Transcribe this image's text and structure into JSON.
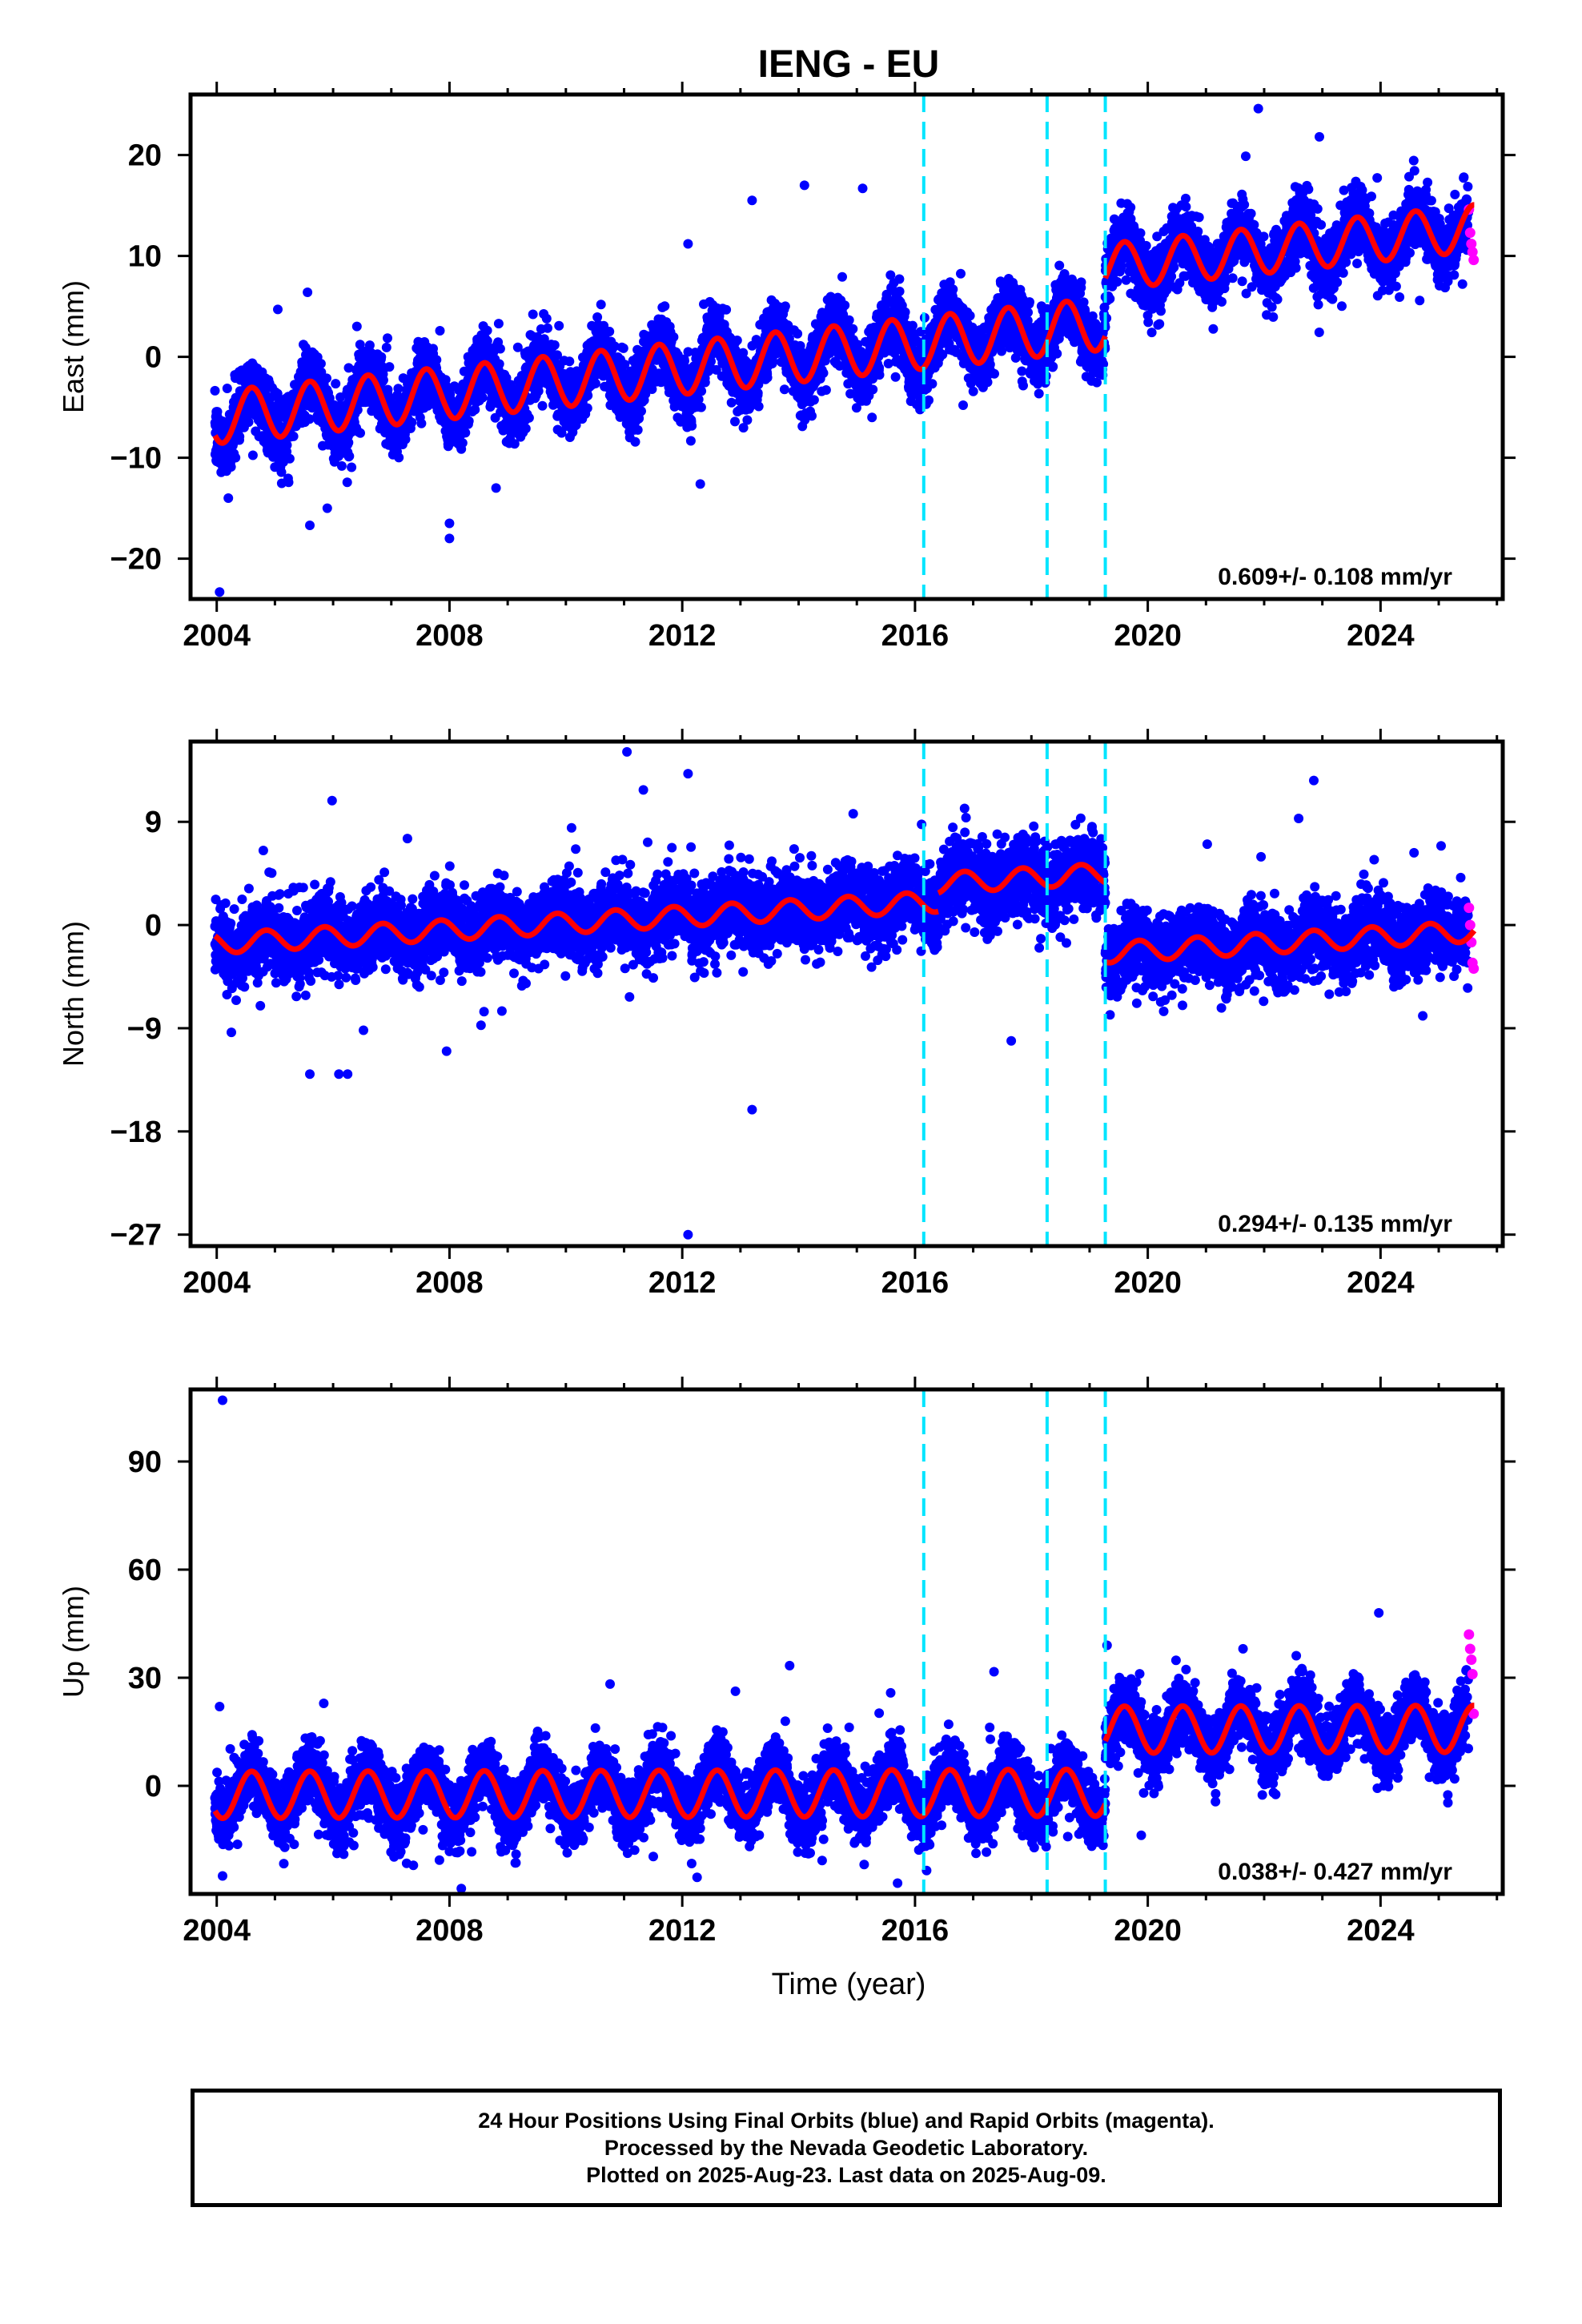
{
  "title": "IENG - EU",
  "x_axis_label": "Time (year)",
  "x_ticks": [
    2004,
    2008,
    2012,
    2016,
    2020,
    2024
  ],
  "event_lines": [
    2016.15,
    2018.27,
    2019.27
  ],
  "colors": {
    "final_orbits": "#0000ff",
    "rapid_orbits": "#ff00ff",
    "model": "#ff0000",
    "events": "#00e5ff",
    "frame": "#000000"
  },
  "chart_data": [
    {
      "type": "scatter",
      "component": "east",
      "ylabel": "East (mm)",
      "ylim": [
        -24,
        26
      ],
      "yticks": [
        20,
        10,
        0,
        -10,
        -20
      ],
      "ytick_labels": [
        "20",
        "10",
        "0",
        "−10",
        "−20"
      ],
      "xlim": [
        2003.55,
        2026.1
      ],
      "rate_text": "0.609+/- 0.108 mm/yr",
      "model": {
        "segments": [
          {
            "start": 2003.97,
            "end": 2019.27,
            "offset": -6.0,
            "trend": 0.609,
            "amp": 2.6,
            "phase": 0.35
          },
          {
            "start": 2019.27,
            "end": 2025.61,
            "offset": -0.4,
            "trend": 0.609,
            "amp": 2.3,
            "phase": 0.35
          }
        ]
      },
      "noise": 1.6,
      "outliers": [
        [
          2004.05,
          -23.3
        ],
        [
          2004.2,
          -14
        ],
        [
          2005.05,
          4.7
        ],
        [
          2012.1,
          11.2
        ],
        [
          2013.2,
          15.5
        ],
        [
          2014.1,
          17
        ],
        [
          2015.1,
          16.7
        ],
        [
          2021.9,
          24.6
        ],
        [
          2022.95,
          21.8
        ],
        [
          2008.0,
          -18.0
        ],
        [
          2008.0,
          -16.5
        ],
        [
          2005.6,
          -16.7
        ],
        [
          2005.9,
          -15.0
        ],
        [
          2008.8,
          -13.0
        ]
      ],
      "rapid_points": [
        [
          2025.52,
          14.6
        ],
        [
          2025.54,
          12.3
        ],
        [
          2025.56,
          11.2
        ],
        [
          2025.58,
          10.4
        ],
        [
          2025.6,
          9.6
        ]
      ]
    },
    {
      "type": "scatter",
      "component": "north",
      "ylabel": "North (mm)",
      "ylim": [
        -28,
        16
      ],
      "yticks": [
        9,
        0,
        -9,
        -18,
        -27
      ],
      "ytick_labels": [
        "9",
        "0",
        "−9",
        "−18",
        "−27"
      ],
      "xlim": [
        2003.55,
        2026.1
      ],
      "rate_text": "0.294+/- 0.135 mm/yr",
      "model": {
        "segments": [
          {
            "start": 2003.97,
            "end": 2016.4,
            "offset": -1.6,
            "trend": 0.294,
            "amp": 0.9,
            "phase": 0.6
          },
          {
            "start": 2016.4,
            "end": 2019.27,
            "offset": 0.0,
            "trend": 0.294,
            "amp": 0.9,
            "phase": 0.6
          },
          {
            "start": 2019.27,
            "end": 2025.61,
            "offset": -6.9,
            "trend": 0.294,
            "amp": 0.9,
            "phase": 0.6
          }
        ]
      },
      "noise": 1.6,
      "outliers": [
        [
          2011.05,
          15.1
        ],
        [
          2012.1,
          13.2
        ],
        [
          2013.2,
          -16.1
        ],
        [
          2012.1,
          -27.0
        ],
        [
          2005.6,
          -13.0
        ],
        [
          2006.1,
          -13.0
        ],
        [
          2006.25,
          -13.0
        ],
        [
          2007.95,
          -11.0
        ],
        [
          2008.9,
          -7.5
        ],
        [
          2004.8,
          6.5
        ]
      ],
      "rapid_points": [
        [
          2025.52,
          1.5
        ],
        [
          2025.54,
          0.0
        ],
        [
          2025.56,
          -1.5
        ],
        [
          2025.58,
          -3.3
        ],
        [
          2025.6,
          -3.8
        ]
      ]
    },
    {
      "type": "scatter",
      "component": "up",
      "ylabel": "Up (mm)",
      "ylim": [
        -30,
        110
      ],
      "yticks": [
        90,
        60,
        30,
        0
      ],
      "ytick_labels": [
        "90",
        "60",
        "30",
        "0"
      ],
      "xlim": [
        2003.55,
        2026.1
      ],
      "rate_text": "0.038+/- 0.427 mm/yr",
      "model": {
        "segments": [
          {
            "start": 2003.97,
            "end": 2019.27,
            "offset": -2.5,
            "trend": 0.038,
            "amp": 6.5,
            "phase": 0.35
          },
          {
            "start": 2019.27,
            "end": 2025.61,
            "offset": 15.0,
            "trend": 0.038,
            "amp": 6.5,
            "phase": 0.35
          }
        ]
      },
      "noise": 4.5,
      "outliers": [
        [
          2004.1,
          107.0
        ],
        [
          2004.05,
          22.0
        ],
        [
          2019.3,
          39.0
        ],
        [
          2016.2,
          -23.5
        ],
        [
          2015.7,
          -27.0
        ],
        [
          2004.1,
          -25.0
        ]
      ],
      "rapid_points": [
        [
          2025.52,
          42.0
        ],
        [
          2025.54,
          38.0
        ],
        [
          2025.56,
          35.0
        ],
        [
          2025.58,
          31.0
        ],
        [
          2025.6,
          20.0
        ]
      ]
    }
  ],
  "footer": {
    "line1": "24 Hour Positions Using Final Orbits (blue) and Rapid Orbits (magenta).",
    "line2": "Processed by the Nevada Geodetic Laboratory.",
    "line3": "Plotted on 2025-Aug-23. Last data on 2025-Aug-09."
  }
}
